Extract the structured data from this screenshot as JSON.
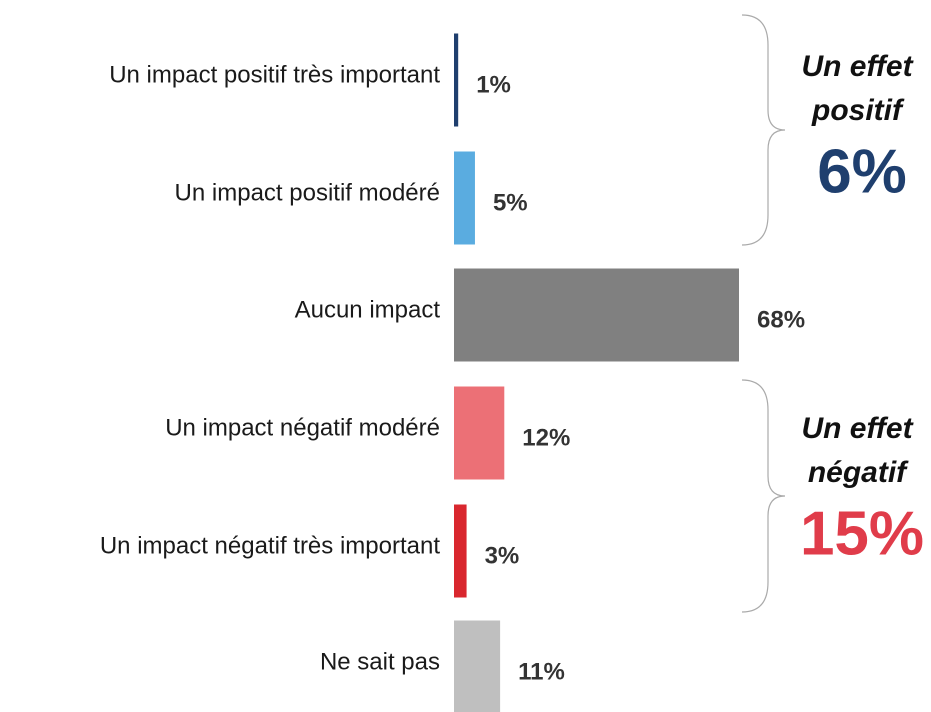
{
  "chart_data": {
    "type": "hbar",
    "categories": [
      "Un impact positif très important",
      "Un impact positif modéré",
      "Aucun impact",
      "Un impact négatif modéré",
      "Un impact négatif très important",
      "Ne sait pas"
    ],
    "values": [
      1,
      5,
      68,
      12,
      3,
      11
    ],
    "value_labels": [
      "1%",
      "5%",
      "68%",
      "12%",
      "3%",
      "11%"
    ],
    "colors": [
      "#1f3f6e",
      "#5aace0",
      "#808080",
      "#ec7076",
      "#d9272e",
      "#bfbfbf"
    ],
    "annotations": [
      {
        "lines": [
          "Un effet",
          "positif"
        ],
        "total": "6%",
        "color": "#1f3f6e"
      },
      {
        "lines": [
          "Un effet",
          "négatif"
        ],
        "total": "15%",
        "color": "#e03c4a"
      }
    ]
  }
}
